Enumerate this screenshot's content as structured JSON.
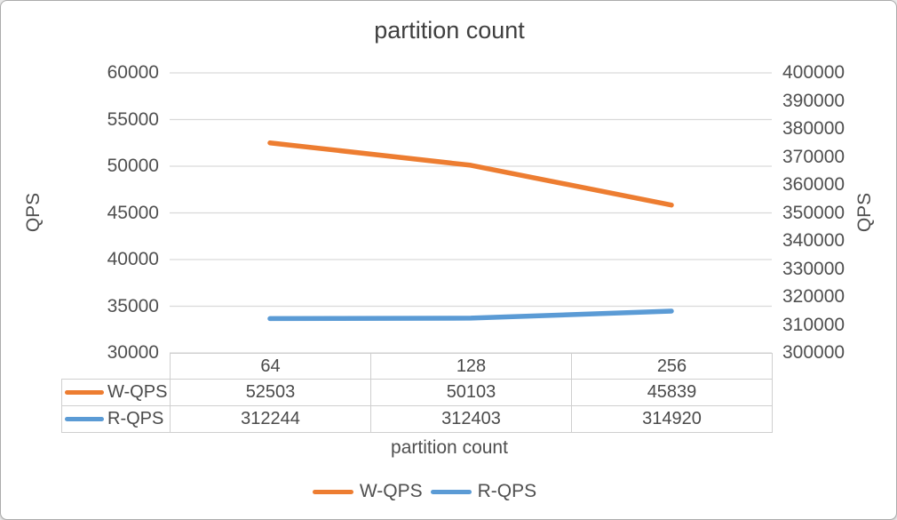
{
  "chart_data": {
    "type": "line",
    "title": "partition count",
    "xlabel": "partition count",
    "categories": [
      "64",
      "128",
      "256"
    ],
    "series": [
      {
        "name": "W-QPS",
        "axis": "left",
        "color": "#ED7D31",
        "values": [
          52503,
          50103,
          45839
        ]
      },
      {
        "name": "R-QPS",
        "axis": "right",
        "color": "#5B9BD5",
        "values": [
          312244,
          312403,
          314920
        ]
      }
    ],
    "left_axis": {
      "label": "QPS",
      "min": 30000,
      "max": 60000,
      "ticks": [
        60000,
        55000,
        50000,
        45000,
        40000,
        35000,
        30000
      ]
    },
    "right_axis": {
      "label": "QPS",
      "min": 300000,
      "max": 400000,
      "ticks": [
        400000,
        390000,
        380000,
        370000,
        360000,
        350000,
        340000,
        330000,
        320000,
        310000,
        300000
      ]
    },
    "grid": true,
    "legend_position": "bottom",
    "data_table_shown": true,
    "colors": {
      "grid": "#d9d9d9",
      "table_border": "#cfcfcf",
      "text": "#4f4f4f",
      "title_text": "#3f3f3f",
      "background": "#ffffff",
      "frame_border": "#ababab"
    }
  }
}
